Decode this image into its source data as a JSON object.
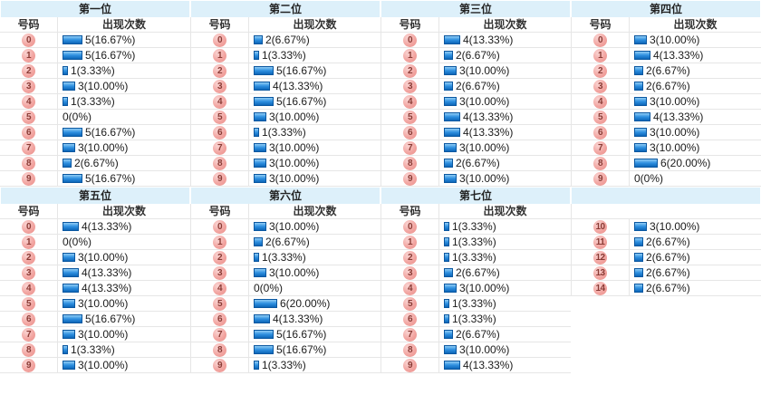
{
  "labels": {
    "number_header": "号码",
    "count_header": "出现次数"
  },
  "colors": {
    "section_header_bg": "#DDF0FA",
    "grid_line": "#E6E6E6",
    "bar_fill_top": "#8FCBF5",
    "bar_fill_bottom": "#0D66B8",
    "bar_border": "#0A57A0",
    "ball_bg": "#F2A5A1",
    "ball_text": "#8A3B35",
    "text": "#1B1B1B"
  },
  "chart_data": {
    "type": "table",
    "value_unit": "出现次数",
    "percent_basis": 30,
    "sections": [
      {
        "title": "第一位",
        "show_column_headers": true,
        "rows": [
          {
            "num": "0",
            "count": 5,
            "percent": "16.67%",
            "label": "5(16.67%)"
          },
          {
            "num": "1",
            "count": 5,
            "percent": "16.67%",
            "label": "5(16.67%)"
          },
          {
            "num": "2",
            "count": 1,
            "percent": "3.33%",
            "label": "1(3.33%)"
          },
          {
            "num": "3",
            "count": 3,
            "percent": "10.00%",
            "label": "3(10.00%)"
          },
          {
            "num": "4",
            "count": 1,
            "percent": "3.33%",
            "label": "1(3.33%)"
          },
          {
            "num": "5",
            "count": 0,
            "percent": "0%",
            "label": "0(0%)"
          },
          {
            "num": "6",
            "count": 5,
            "percent": "16.67%",
            "label": "5(16.67%)"
          },
          {
            "num": "7",
            "count": 3,
            "percent": "10.00%",
            "label": "3(10.00%)"
          },
          {
            "num": "8",
            "count": 2,
            "percent": "6.67%",
            "label": "2(6.67%)"
          },
          {
            "num": "9",
            "count": 5,
            "percent": "16.67%",
            "label": "5(16.67%)"
          }
        ]
      },
      {
        "title": "第二位",
        "show_column_headers": true,
        "rows": [
          {
            "num": "0",
            "count": 2,
            "percent": "6.67%",
            "label": "2(6.67%)"
          },
          {
            "num": "1",
            "count": 1,
            "percent": "3.33%",
            "label": "1(3.33%)"
          },
          {
            "num": "2",
            "count": 5,
            "percent": "16.67%",
            "label": "5(16.67%)"
          },
          {
            "num": "3",
            "count": 4,
            "percent": "13.33%",
            "label": "4(13.33%)"
          },
          {
            "num": "4",
            "count": 5,
            "percent": "16.67%",
            "label": "5(16.67%)"
          },
          {
            "num": "5",
            "count": 3,
            "percent": "10.00%",
            "label": "3(10.00%)"
          },
          {
            "num": "6",
            "count": 1,
            "percent": "3.33%",
            "label": "1(3.33%)"
          },
          {
            "num": "7",
            "count": 3,
            "percent": "10.00%",
            "label": "3(10.00%)"
          },
          {
            "num": "8",
            "count": 3,
            "percent": "10.00%",
            "label": "3(10.00%)"
          },
          {
            "num": "9",
            "count": 3,
            "percent": "10.00%",
            "label": "3(10.00%)"
          }
        ]
      },
      {
        "title": "第三位",
        "show_column_headers": true,
        "rows": [
          {
            "num": "0",
            "count": 4,
            "percent": "13.33%",
            "label": "4(13.33%)"
          },
          {
            "num": "1",
            "count": 2,
            "percent": "6.67%",
            "label": "2(6.67%)"
          },
          {
            "num": "2",
            "count": 3,
            "percent": "10.00%",
            "label": "3(10.00%)"
          },
          {
            "num": "3",
            "count": 2,
            "percent": "6.67%",
            "label": "2(6.67%)"
          },
          {
            "num": "4",
            "count": 3,
            "percent": "10.00%",
            "label": "3(10.00%)"
          },
          {
            "num": "5",
            "count": 4,
            "percent": "13.33%",
            "label": "4(13.33%)"
          },
          {
            "num": "6",
            "count": 4,
            "percent": "13.33%",
            "label": "4(13.33%)"
          },
          {
            "num": "7",
            "count": 3,
            "percent": "10.00%",
            "label": "3(10.00%)"
          },
          {
            "num": "8",
            "count": 2,
            "percent": "6.67%",
            "label": "2(6.67%)"
          },
          {
            "num": "9",
            "count": 3,
            "percent": "10.00%",
            "label": "3(10.00%)"
          }
        ]
      },
      {
        "title": "第四位",
        "show_column_headers": true,
        "rows": [
          {
            "num": "0",
            "count": 3,
            "percent": "10.00%",
            "label": "3(10.00%)"
          },
          {
            "num": "1",
            "count": 4,
            "percent": "13.33%",
            "label": "4(13.33%)"
          },
          {
            "num": "2",
            "count": 2,
            "percent": "6.67%",
            "label": "2(6.67%)"
          },
          {
            "num": "3",
            "count": 2,
            "percent": "6.67%",
            "label": "2(6.67%)"
          },
          {
            "num": "4",
            "count": 3,
            "percent": "10.00%",
            "label": "3(10.00%)"
          },
          {
            "num": "5",
            "count": 4,
            "percent": "13.33%",
            "label": "4(13.33%)"
          },
          {
            "num": "6",
            "count": 3,
            "percent": "10.00%",
            "label": "3(10.00%)"
          },
          {
            "num": "7",
            "count": 3,
            "percent": "10.00%",
            "label": "3(10.00%)"
          },
          {
            "num": "8",
            "count": 6,
            "percent": "20.00%",
            "label": "6(20.00%)"
          },
          {
            "num": "9",
            "count": 0,
            "percent": "0%",
            "label": "0(0%)"
          }
        ]
      },
      {
        "title": "第五位",
        "show_column_headers": true,
        "rows": [
          {
            "num": "0",
            "count": 4,
            "percent": "13.33%",
            "label": "4(13.33%)"
          },
          {
            "num": "1",
            "count": 0,
            "percent": "0%",
            "label": "0(0%)"
          },
          {
            "num": "2",
            "count": 3,
            "percent": "10.00%",
            "label": "3(10.00%)"
          },
          {
            "num": "3",
            "count": 4,
            "percent": "13.33%",
            "label": "4(13.33%)"
          },
          {
            "num": "4",
            "count": 4,
            "percent": "13.33%",
            "label": "4(13.33%)"
          },
          {
            "num": "5",
            "count": 3,
            "percent": "10.00%",
            "label": "3(10.00%)"
          },
          {
            "num": "6",
            "count": 5,
            "percent": "16.67%",
            "label": "5(16.67%)"
          },
          {
            "num": "7",
            "count": 3,
            "percent": "10.00%",
            "label": "3(10.00%)"
          },
          {
            "num": "8",
            "count": 1,
            "percent": "3.33%",
            "label": "1(3.33%)"
          },
          {
            "num": "9",
            "count": 3,
            "percent": "10.00%",
            "label": "3(10.00%)"
          }
        ]
      },
      {
        "title": "第六位",
        "show_column_headers": true,
        "rows": [
          {
            "num": "0",
            "count": 3,
            "percent": "10.00%",
            "label": "3(10.00%)"
          },
          {
            "num": "1",
            "count": 2,
            "percent": "6.67%",
            "label": "2(6.67%)"
          },
          {
            "num": "2",
            "count": 1,
            "percent": "3.33%",
            "label": "1(3.33%)"
          },
          {
            "num": "3",
            "count": 3,
            "percent": "10.00%",
            "label": "3(10.00%)"
          },
          {
            "num": "4",
            "count": 0,
            "percent": "0%",
            "label": "0(0%)"
          },
          {
            "num": "5",
            "count": 6,
            "percent": "20.00%",
            "label": "6(20.00%)"
          },
          {
            "num": "6",
            "count": 4,
            "percent": "13.33%",
            "label": "4(13.33%)"
          },
          {
            "num": "7",
            "count": 5,
            "percent": "16.67%",
            "label": "5(16.67%)"
          },
          {
            "num": "8",
            "count": 5,
            "percent": "16.67%",
            "label": "5(16.67%)"
          },
          {
            "num": "9",
            "count": 1,
            "percent": "3.33%",
            "label": "1(3.33%)"
          }
        ]
      },
      {
        "title": "第七位",
        "show_column_headers": true,
        "rows": [
          {
            "num": "0",
            "count": 1,
            "percent": "3.33%",
            "label": "1(3.33%)"
          },
          {
            "num": "1",
            "count": 1,
            "percent": "3.33%",
            "label": "1(3.33%)"
          },
          {
            "num": "2",
            "count": 1,
            "percent": "3.33%",
            "label": "1(3.33%)"
          },
          {
            "num": "3",
            "count": 2,
            "percent": "6.67%",
            "label": "2(6.67%)"
          },
          {
            "num": "4",
            "count": 3,
            "percent": "10.00%",
            "label": "3(10.00%)"
          },
          {
            "num": "5",
            "count": 1,
            "percent": "3.33%",
            "label": "1(3.33%)"
          },
          {
            "num": "6",
            "count": 1,
            "percent": "3.33%",
            "label": "1(3.33%)"
          },
          {
            "num": "7",
            "count": 2,
            "percent": "6.67%",
            "label": "2(6.67%)"
          },
          {
            "num": "8",
            "count": 3,
            "percent": "10.00%",
            "label": "3(10.00%)"
          },
          {
            "num": "9",
            "count": 4,
            "percent": "13.33%",
            "label": "4(13.33%)"
          }
        ]
      },
      {
        "title": "",
        "show_column_headers": false,
        "rows": [
          {
            "num": "10",
            "count": 3,
            "percent": "10.00%",
            "label": "3(10.00%)"
          },
          {
            "num": "11",
            "count": 2,
            "percent": "6.67%",
            "label": "2(6.67%)"
          },
          {
            "num": "12",
            "count": 2,
            "percent": "6.67%",
            "label": "2(6.67%)"
          },
          {
            "num": "13",
            "count": 2,
            "percent": "6.67%",
            "label": "2(6.67%)"
          },
          {
            "num": "14",
            "count": 2,
            "percent": "6.67%",
            "label": "2(6.67%)"
          }
        ]
      }
    ]
  }
}
